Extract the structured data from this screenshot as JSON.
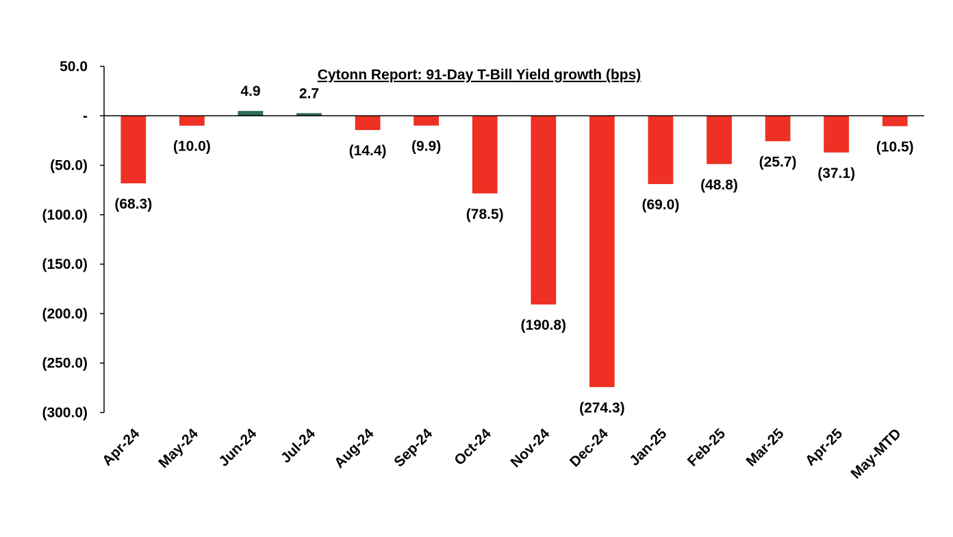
{
  "chart_data": {
    "type": "bar",
    "title": "Cytonn Report:  91-Day T-Bill Yield growth (bps)",
    "xlabel": "",
    "ylabel": "",
    "ylim": [
      -300,
      50
    ],
    "y_ticks": [
      50,
      0,
      -50,
      -100,
      -150,
      -200,
      -250,
      -300
    ],
    "y_tick_labels": [
      "50.0",
      "-",
      "(50.0)",
      "(100.0)",
      "(150.0)",
      "(200.0)",
      "(250.0)",
      "(300.0)"
    ],
    "categories": [
      "Apr-24",
      "May-24",
      "Jun-24",
      "Jul-24",
      "Aug-24",
      "Sep-24",
      "Oct-24",
      "Nov-24",
      "Dec-24",
      "Jan-25",
      "Feb-25",
      "Mar-25",
      "Apr-25",
      "May-MTD"
    ],
    "values": [
      -68.3,
      -10.0,
      4.9,
      2.7,
      -14.4,
      -9.9,
      -78.5,
      -190.8,
      -274.3,
      -69.0,
      -48.8,
      -25.7,
      -37.1,
      -10.5
    ],
    "data_labels": [
      "(68.3)",
      "(10.0)",
      "4.9",
      "2.7",
      "(14.4)",
      "(9.9)",
      "(78.5)",
      "(190.8)",
      "(274.3)",
      "(69.0)",
      "(48.8)",
      "(25.7)",
      "(37.1)",
      "(10.5)"
    ],
    "colors": {
      "positive": "#2e6b57",
      "negative": "#ee3124"
    },
    "grid": false,
    "legend": "none"
  }
}
